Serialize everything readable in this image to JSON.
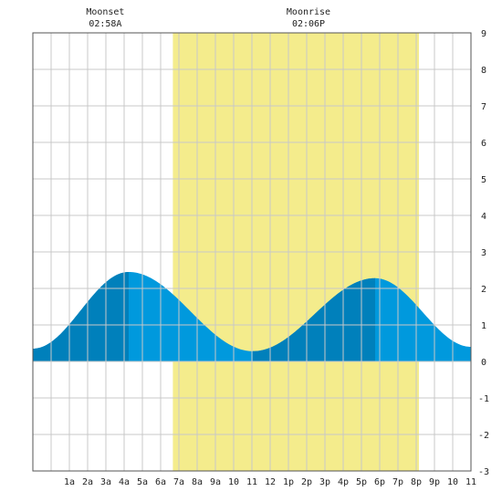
{
  "chart_data": {
    "type": "area",
    "title": "",
    "xlabel": "",
    "ylabel": "",
    "x_range_hours": [
      -1,
      23
    ],
    "ylim": [
      -3,
      9
    ],
    "grid": true,
    "x_tick_hours": [
      1,
      2,
      3,
      4,
      5,
      6,
      7,
      8,
      9,
      10,
      11,
      12,
      13,
      14,
      15,
      16,
      17,
      18,
      19,
      20,
      21,
      22,
      23
    ],
    "x_tick_labels": [
      "1a",
      "2a",
      "3a",
      "4a",
      "5a",
      "6a",
      "7a",
      "8a",
      "9a",
      "10",
      "11",
      "12",
      "1p",
      "2p",
      "3p",
      "4p",
      "5p",
      "6p",
      "7p",
      "8p",
      "9p",
      "10",
      "11"
    ],
    "y_ticks": [
      -3,
      -2,
      -1,
      0,
      1,
      2,
      3,
      4,
      5,
      6,
      7,
      8,
      9
    ],
    "y_tick_labels": [
      "-3",
      "-2",
      "-1",
      "0",
      "1",
      "2",
      "3",
      "4",
      "5",
      "6",
      "7",
      "8",
      "9"
    ],
    "daylight_hours": [
      6.67,
      20.15
    ],
    "tide_extremes": [
      {
        "hour": -1,
        "height": 0.35
      },
      {
        "hour": 4.25,
        "height": 2.45
      },
      {
        "hour": 11.05,
        "height": 0.28
      },
      {
        "hour": 17.75,
        "height": 2.28
      },
      {
        "hour": 23,
        "height": 0.4
      }
    ],
    "tide_dark_segments": [
      [
        -1,
        4.25
      ],
      [
        11.05,
        17.75
      ]
    ],
    "events": [
      {
        "label": "Moonset",
        "time": "02:58A",
        "hour": 2.97
      },
      {
        "label": "Moonrise",
        "time": "02:06P",
        "hour": 14.1
      }
    ],
    "colors": {
      "daylight": "#f4ec8c",
      "tide_light": "#0099dd",
      "tide_dark": "#0080bb",
      "grid": "#c8c8c8",
      "frame": "#555555"
    }
  }
}
